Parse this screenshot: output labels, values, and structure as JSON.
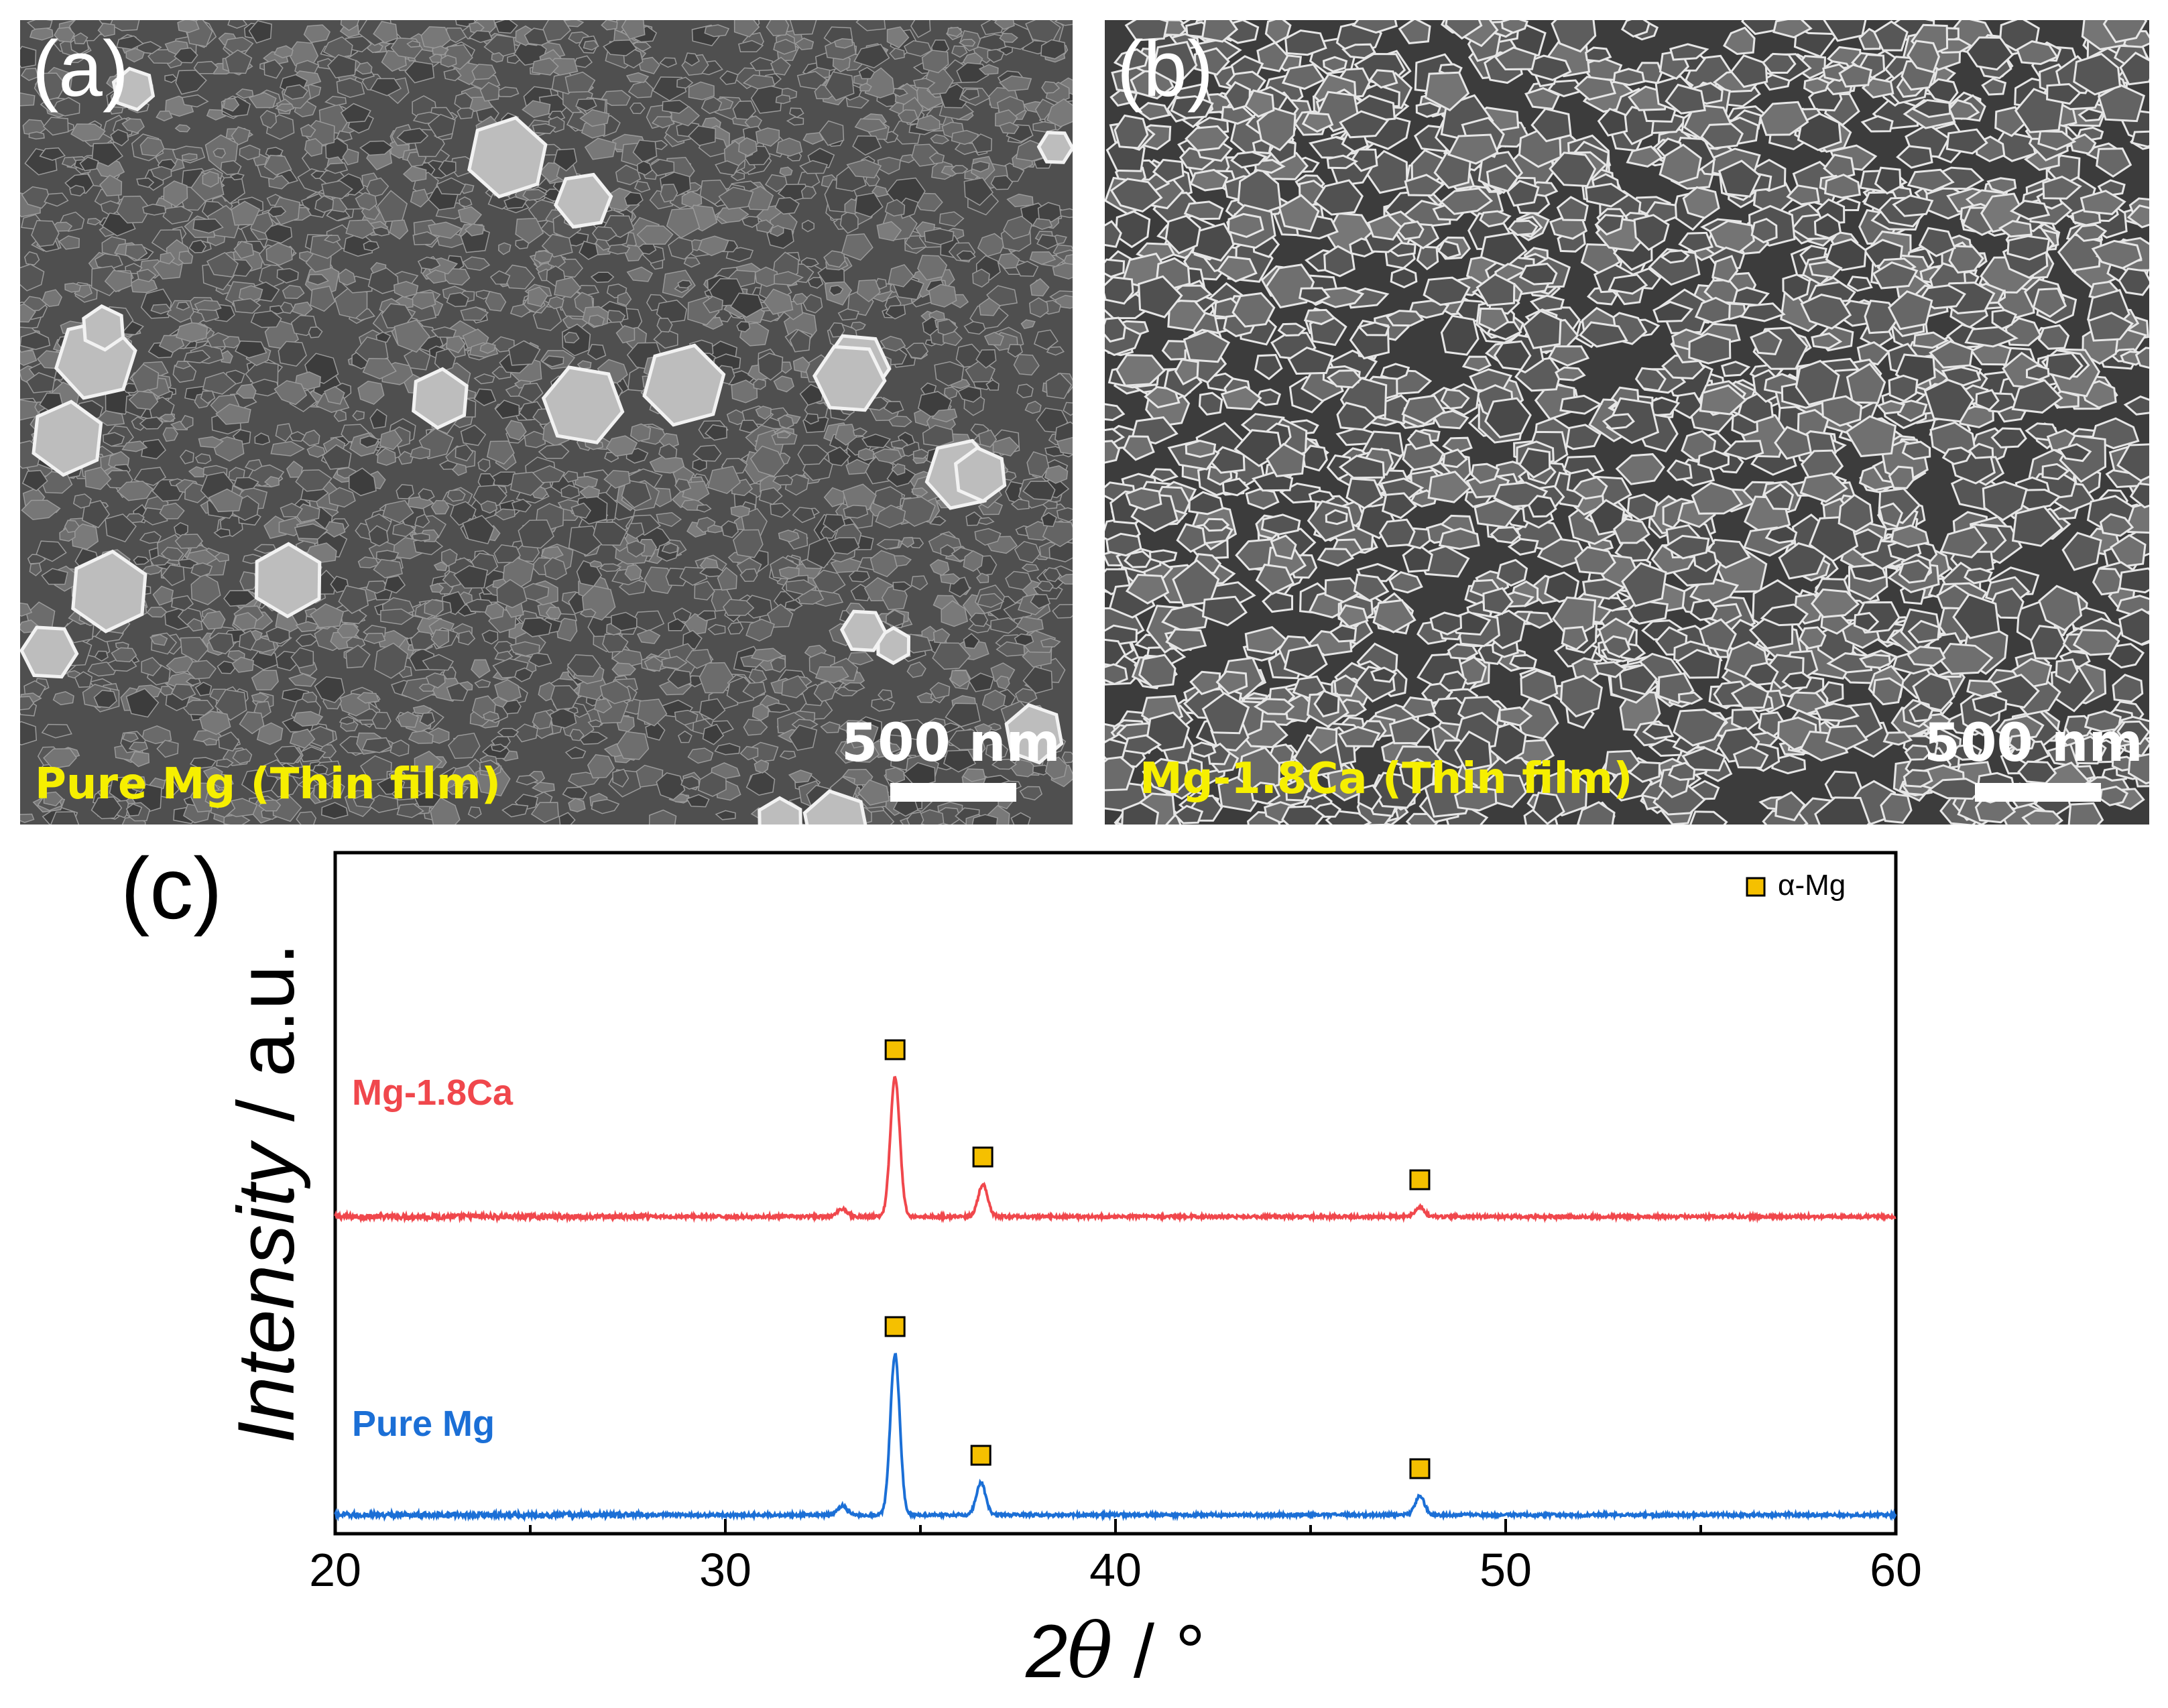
{
  "panels": {
    "a": {
      "letter": "(a)",
      "sample_label": "Pure Mg (Thin film)",
      "scale_label": "500 nm"
    },
    "b": {
      "letter": "(b)",
      "sample_label": "Mg-1.8Ca (Thin film)",
      "scale_label": "500 nm"
    },
    "c": {
      "letter": "(c)"
    }
  },
  "colors": {
    "mg_ca": "#f0474c",
    "pure_mg": "#1b6fd6",
    "marker": "#f5c000",
    "sample_label": "#f6ef00"
  },
  "chart_data": {
    "type": "line",
    "title": "",
    "xlabel_prefix": "2",
    "xlabel_symbol": "θ",
    "xlabel_suffix": " / °",
    "ylabel_main": "Intensity",
    "ylabel_unit": " / a.u.",
    "xlim": [
      20,
      60
    ],
    "x_ticks": [
      "20",
      "30",
      "40",
      "50",
      "60"
    ],
    "y_ticks": [],
    "legend": {
      "marker": "square",
      "label": "α-Mg",
      "position": "top-right"
    },
    "grid": false,
    "series": [
      {
        "name": "Mg-1.8Ca",
        "baseline": 0.0,
        "peaks": [
          {
            "x": 33.0,
            "height": 0.03
          },
          {
            "x": 34.35,
            "height": 0.52
          },
          {
            "x": 36.6,
            "height": 0.12
          },
          {
            "x": 47.8,
            "height": 0.035
          }
        ],
        "markers_at": [
          34.35,
          36.6,
          47.8
        ]
      },
      {
        "name": "Pure Mg",
        "baseline": 0.0,
        "peaks": [
          {
            "x": 33.0,
            "height": 0.035
          },
          {
            "x": 34.35,
            "height": 0.6
          },
          {
            "x": 36.55,
            "height": 0.12
          },
          {
            "x": 47.8,
            "height": 0.07
          }
        ],
        "markers_at": [
          34.35,
          36.55,
          47.8
        ]
      }
    ]
  }
}
